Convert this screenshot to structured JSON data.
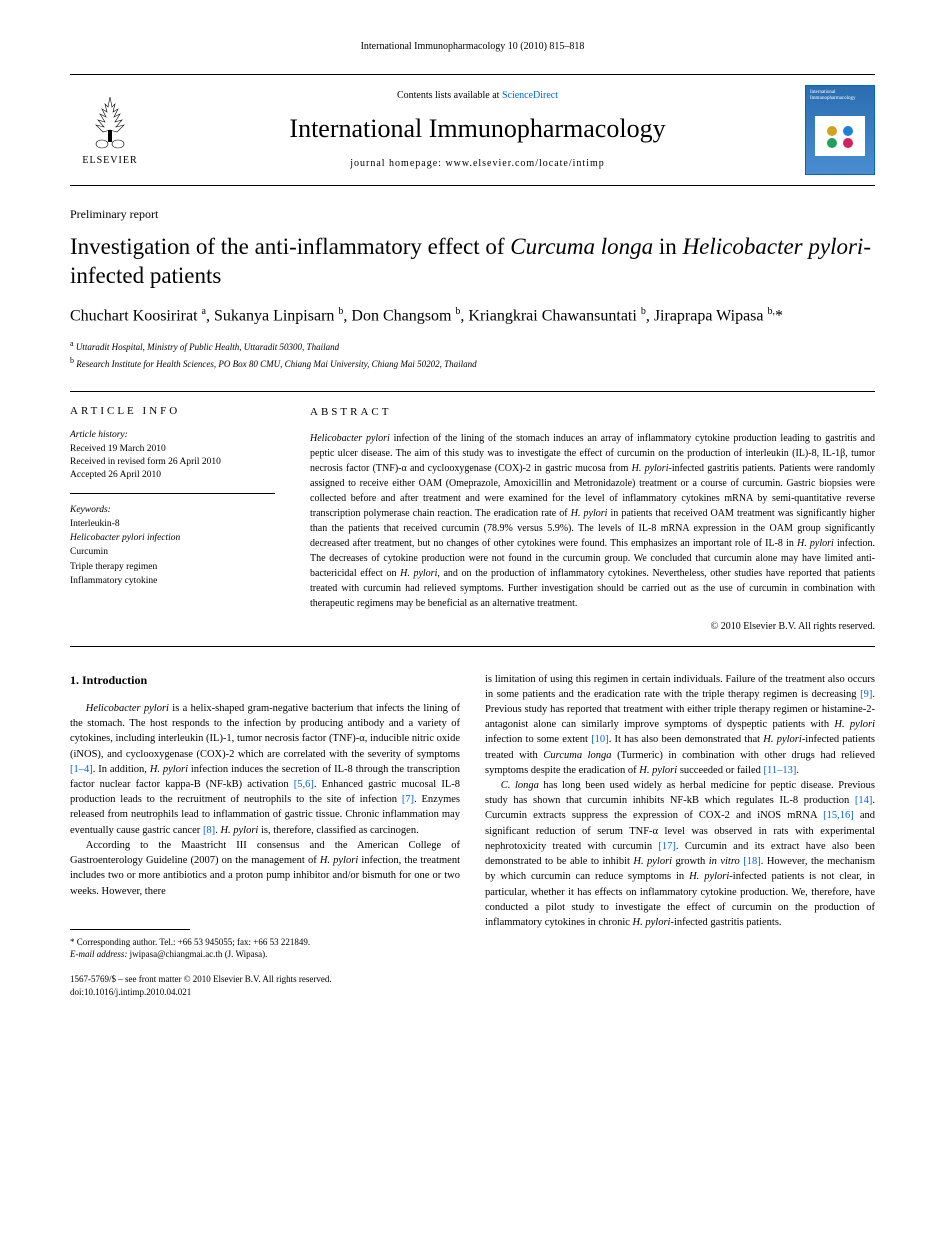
{
  "header": {
    "running": "International Immunopharmacology 10 (2010) 815–818",
    "contents_prefix": "Contents lists available at ",
    "contents_link": "ScienceDirect",
    "journal": "International Immunopharmacology",
    "homepage_label": "journal homepage: ",
    "homepage_url": "www.elsevier.com/locate/intimp",
    "elsevier": "ELSEVIER",
    "cover_title": "International Immunopharmacology"
  },
  "article": {
    "type": "Preliminary report",
    "title_pre": "Investigation of the anti-inflammatory effect of ",
    "title_it1": "Curcuma longa",
    "title_mid": " in ",
    "title_it2": "Helicobacter pylori",
    "title_post": "-infected patients",
    "authors_html": "Chuchart Koosirirat <sup>a</sup>, Sukanya Linpisarn <sup>b</sup>, Don Changsom <sup>b</sup>, Kriangkrai Chawansuntati <sup>b</sup>, Jiraprapa Wipasa <sup>b,</sup>*",
    "aff_a": "Uttaradit Hospital, Ministry of Public Health, Uttaradit 50300, Thailand",
    "aff_b": "Research Institute for Health Sciences, PO Box 80 CMU, Chiang Mai University, Chiang Mai 50202, Thailand"
  },
  "info": {
    "heading": "ARTICLE INFO",
    "history_label": "Article history:",
    "received": "Received 19 March 2010",
    "revised": "Received in revised form 26 April 2010",
    "accepted": "Accepted 26 April 2010",
    "keywords_label": "Keywords:",
    "keywords": [
      "Interleukin-8",
      "Helicobacter pylori infection",
      "Curcumin",
      "Triple therapy regimen",
      "Inflammatory cytokine"
    ]
  },
  "abstract": {
    "heading": "ABSTRACT",
    "text": "Helicobacter pylori infection of the lining of the stomach induces an array of inflammatory cytokine production leading to gastritis and peptic ulcer disease. The aim of this study was to investigate the effect of curcumin on the production of interleukin (IL)-8, IL-1β, tumor necrosis factor (TNF)-α and cyclooxygenase (COX)-2 in gastric mucosa from H. pylori-infected gastritis patients. Patients were randomly assigned to receive either OAM (Omeprazole, Amoxicillin and Metronidazole) treatment or a course of curcumin. Gastric biopsies were collected before and after treatment and were examined for the level of inflammatory cytokines mRNA by semi-quantitative reverse transcription polymerase chain reaction. The eradication rate of H. pylori in patients that received OAM treatment was significantly higher than the patients that received curcumin (78.9% versus 5.9%). The levels of IL-8 mRNA expression in the OAM group significantly decreased after treatment, but no changes of other cytokines were found. This emphasizes an important role of IL-8 in H. pylori infection. The decreases of cytokine production were not found in the curcumin group. We concluded that curcumin alone may have limited anti-bactericidal effect on H. pylori, and on the production of inflammatory cytokines. Nevertheless, other studies have reported that patients treated with curcumin had relieved symptoms. Further investigation should be carried out as the use of curcumin in combination with therapeutic regimens may be beneficial as an alternative treatment.",
    "copyright": "© 2010 Elsevier B.V. All rights reserved."
  },
  "body": {
    "section1_title": "1. Introduction",
    "p1": "Helicobacter pylori is a helix-shaped gram-negative bacterium that infects the lining of the stomach. The host responds to the infection by producing antibody and a variety of cytokines, including interleukin (IL)-1, tumor necrosis factor (TNF)-α, inducible nitric oxide (iNOS), and cyclooxygenase (COX)-2 which are correlated with the severity of symptoms [1–4]. In addition, H. pylori infection induces the secretion of IL-8 through the transcription factor nuclear factor kappa-B (NF-kB) activation [5,6]. Enhanced gastric mucosal IL-8 production leads to the recruitment of neutrophils to the site of infection [7]. Enzymes released from neutrophils lead to inflammation of gastric tissue. Chronic inflammation may eventually cause gastric cancer [8]. H. pylori is, therefore, classified as carcinogen.",
    "p2": "According to the Maastricht III consensus and the American College of Gastroenterology Guideline (2007) on the management of H. pylori infection, the treatment includes two or more antibiotics and a proton pump inhibitor and/or bismuth for one or two weeks. However, there",
    "p3": "is limitation of using this regimen in certain individuals. Failure of the treatment also occurs in some patients and the eradication rate with the triple therapy regimen is decreasing [9]. Previous study has reported that treatment with either triple therapy regimen or histamine-2-antagonist alone can similarly improve symptoms of dyspeptic patients with H. pylori infection to some extent [10]. It has also been demonstrated that H. pylori-infected patients treated with Curcuma longa (Turmeric) in combination with other drugs had relieved symptoms despite the eradication of H. pylori succeeded or failed [11–13].",
    "p4": "C. longa has long been used widely as herbal medicine for peptic disease. Previous study has shown that curcumin inhibits NF-kB which regulates IL-8 production [14]. Curcumin extracts suppress the expression of COX-2 and iNOS mRNA [15,16] and significant reduction of serum TNF-α level was observed in rats with experimental nephrotoxicity treated with curcumin [17]. Curcumin and its extract have also been demonstrated to be able to inhibit H. pylori growth in vitro [18]. However, the mechanism by which curcumin can reduce symptoms in H. pylori-infected patients is not clear, in particular, whether it has effects on inflammatory cytokine production. We, therefore, have conducted a pilot study to investigate the effect of curcumin on the production of inflammatory cytokines in chronic H. pylori-infected gastritis patients."
  },
  "footer": {
    "corr_label": "* Corresponding author. Tel.: +66 53 945055; fax: +66 53 221849.",
    "email_label": "E-mail address:",
    "email": "jwipasa@chiangmai.ac.th",
    "email_name": "(J. Wipasa).",
    "issn": "1567-5769/$ – see front matter © 2010 Elsevier B.V. All rights reserved.",
    "doi": "doi:10.1016/j.intimp.2010.04.021"
  },
  "styles": {
    "link_color": "#0066cc",
    "text_color": "#000000",
    "bg_color": "#ffffff"
  }
}
